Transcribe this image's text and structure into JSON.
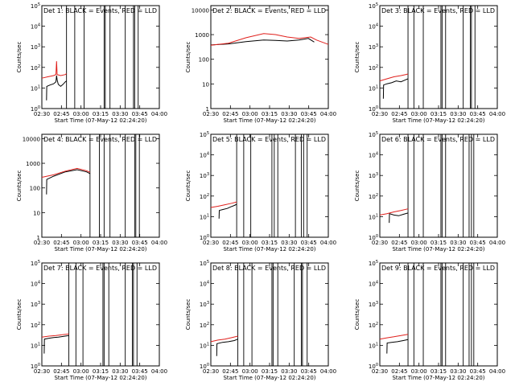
{
  "figure": {
    "xtick_labels": [
      "02:30",
      "02:45",
      "03:00",
      "03:15",
      "03:30",
      "03:45",
      "04:00"
    ],
    "xlabel": "Start Time (07-May-12 02:24:20)",
    "ylabel": "Counts/sec",
    "series_colors": {
      "events": "#000000",
      "lld": "#e0201c"
    }
  },
  "chart_data": [
    {
      "type": "line",
      "title": "Det 1: BLACK = Events, RED = LLD",
      "xlabel": "Start Time (07-May-12 02:24:20)",
      "ylabel": "Counts/sec",
      "scale": "log",
      "ylim": [
        1,
        100000
      ],
      "xlim": [
        0,
        100
      ],
      "yticks": [
        1,
        10,
        100,
        1000,
        10000,
        100000
      ],
      "ytick_labels": [
        "10^0",
        "10^1",
        "10^2",
        "10^3",
        "10^4",
        "10^5"
      ],
      "ytick_style": "sup",
      "gaps": [
        [
          21,
          28
        ],
        [
          36,
          53
        ],
        [
          54,
          58
        ],
        [
          71,
          78
        ],
        [
          79,
          82
        ]
      ],
      "series": [
        {
          "name": "Events",
          "color": "#000000",
          "points": [
            [
              4,
              2.5
            ],
            [
              4.2,
              12
            ],
            [
              7,
              14
            ],
            [
              10,
              16
            ],
            [
              12,
              20
            ],
            [
              12.5,
              40
            ],
            [
              13,
              25
            ],
            [
              14,
              15
            ],
            [
              16,
              12
            ],
            [
              18,
              15
            ],
            [
              20,
              20
            ],
            [
              21,
              22
            ]
          ]
        },
        {
          "name": "LLD",
          "color": "#e0201c",
          "points": [
            [
              0,
              30
            ],
            [
              5,
              35
            ],
            [
              10,
              40
            ],
            [
              12,
              45
            ],
            [
              12.5,
              200
            ],
            [
              13,
              45
            ],
            [
              16,
              40
            ],
            [
              20,
              45
            ],
            [
              21,
              50
            ]
          ]
        }
      ]
    },
    {
      "type": "line",
      "title": "Det 2: BLACK = Events, RED = LLD",
      "xlabel": "Start Time (07-May-12 02:24:20)",
      "ylabel": "Counts/sec",
      "scale": "log",
      "ylim": [
        1,
        15000
      ],
      "xlim": [
        0,
        100
      ],
      "yticks": [
        1,
        10,
        100,
        1000,
        10000
      ],
      "ytick_labels": [
        "1",
        "10",
        "100",
        "1000",
        "10000"
      ],
      "ytick_style": "plain",
      "gaps": [],
      "series": [
        {
          "name": "Events",
          "color": "#000000",
          "points": [
            [
              0,
              380
            ],
            [
              15,
              420
            ],
            [
              30,
              520
            ],
            [
              45,
              600
            ],
            [
              55,
              580
            ],
            [
              65,
              550
            ],
            [
              75,
              600
            ],
            [
              83,
              700
            ],
            [
              88,
              500
            ]
          ]
        },
        {
          "name": "LLD",
          "color": "#e0201c",
          "points": [
            [
              0,
              370
            ],
            [
              15,
              450
            ],
            [
              30,
              750
            ],
            [
              45,
              1100
            ],
            [
              55,
              1000
            ],
            [
              65,
              800
            ],
            [
              75,
              700
            ],
            [
              85,
              800
            ],
            [
              90,
              600
            ],
            [
              100,
              400
            ]
          ]
        }
      ]
    },
    {
      "type": "line",
      "title": "Det 3: BLACK = Events, RED = LLD",
      "xlabel": "Start Time (07-May-12 02:24:20)",
      "ylabel": "Counts/sec",
      "scale": "log",
      "ylim": [
        1,
        100000
      ],
      "xlim": [
        0,
        100
      ],
      "yticks": [
        1,
        10,
        100,
        1000,
        10000,
        100000
      ],
      "ytick_labels": [
        "10^0",
        "10^1",
        "10^2",
        "10^3",
        "10^4",
        "10^5"
      ],
      "ytick_style": "sup",
      "gaps": [
        [
          24,
          29
        ],
        [
          37,
          52
        ],
        [
          53,
          56
        ],
        [
          71,
          77
        ],
        [
          78,
          81
        ]
      ],
      "series": [
        {
          "name": "Events",
          "color": "#000000",
          "points": [
            [
              3,
              3
            ],
            [
              3.2,
              14
            ],
            [
              6,
              16
            ],
            [
              10,
              18
            ],
            [
              14,
              22
            ],
            [
              18,
              20
            ],
            [
              22,
              25
            ],
            [
              24,
              28
            ]
          ]
        },
        {
          "name": "LLD",
          "color": "#e0201c",
          "points": [
            [
              0,
              22
            ],
            [
              6,
              28
            ],
            [
              12,
              35
            ],
            [
              18,
              40
            ],
            [
              22,
              45
            ],
            [
              24,
              48
            ]
          ]
        }
      ]
    },
    {
      "type": "line",
      "title": "Det 4: BLACK = Events, RED = LLD",
      "xlabel": "Start Time (07-May-12 02:24:20)",
      "ylabel": "Counts/sec",
      "scale": "log",
      "ylim": [
        1,
        15000
      ],
      "xlim": [
        0,
        100
      ],
      "yticks": [
        1,
        10,
        100,
        1000,
        10000
      ],
      "ytick_labels": [
        "1",
        "10",
        "100",
        "1000",
        "10000"
      ],
      "ytick_style": "plain",
      "gaps": [
        [
          41,
          49
        ],
        [
          53,
          58
        ],
        [
          71,
          79
        ],
        [
          80,
          83
        ]
      ],
      "series": [
        {
          "name": "Events",
          "color": "#000000",
          "points": [
            [
              4,
              55
            ],
            [
              4.2,
              220
            ],
            [
              10,
              300
            ],
            [
              20,
              450
            ],
            [
              30,
              550
            ],
            [
              38,
              450
            ],
            [
              41,
              380
            ]
          ]
        },
        {
          "name": "LLD",
          "color": "#e0201c",
          "points": [
            [
              0,
              270
            ],
            [
              10,
              340
            ],
            [
              20,
              480
            ],
            [
              30,
              620
            ],
            [
              38,
              500
            ],
            [
              41,
              430
            ]
          ]
        }
      ]
    },
    {
      "type": "line",
      "title": "Det 5: BLACK = Events, RED = LLD",
      "xlabel": "Start Time (07-May-12 02:24:20)",
      "ylabel": "Counts/sec",
      "scale": "log",
      "ylim": [
        1,
        100000
      ],
      "xlim": [
        0,
        100
      ],
      "yticks": [
        1,
        10,
        100,
        1000,
        10000,
        100000
      ],
      "ytick_labels": [
        "10^0",
        "10^1",
        "10^2",
        "10^3",
        "10^4",
        "10^5"
      ],
      "ytick_style": "sup",
      "gaps": [
        [
          22,
          28
        ],
        [
          34,
          52
        ],
        [
          54,
          57
        ],
        [
          72,
          77
        ],
        [
          79,
          82
        ]
      ],
      "series": [
        {
          "name": "Events",
          "color": "#000000",
          "points": [
            [
              7,
              8
            ],
            [
              7.2,
              20
            ],
            [
              10,
              22
            ],
            [
              14,
              25
            ],
            [
              17,
              30
            ],
            [
              20,
              35
            ],
            [
              22,
              40
            ]
          ]
        },
        {
          "name": "LLD",
          "color": "#e0201c",
          "points": [
            [
              0,
              28
            ],
            [
              6,
              32
            ],
            [
              12,
              38
            ],
            [
              18,
              45
            ],
            [
              22,
              52
            ]
          ]
        }
      ]
    },
    {
      "type": "line",
      "title": "Det 6: BLACK = Events, RED = LLD",
      "xlabel": "Start Time (07-May-12 02:24:20)",
      "ylabel": "Counts/sec",
      "scale": "log",
      "ylim": [
        1,
        100000
      ],
      "xlim": [
        0,
        100
      ],
      "yticks": [
        1,
        10,
        100,
        1000,
        10000,
        100000
      ],
      "ytick_labels": [
        "10^0",
        "10^1",
        "10^2",
        "10^3",
        "10^4",
        "10^5"
      ],
      "ytick_style": "sup",
      "gaps": [
        [
          24,
          29
        ],
        [
          37,
          52
        ],
        [
          53,
          56
        ],
        [
          71,
          76
        ],
        [
          78,
          80
        ]
      ],
      "series": [
        {
          "name": "Events",
          "color": "#000000",
          "points": [
            [
              8,
              5
            ],
            [
              8.2,
              14
            ],
            [
              12,
              12
            ],
            [
              16,
              11
            ],
            [
              20,
              13
            ],
            [
              24,
              15
            ]
          ]
        },
        {
          "name": "LLD",
          "color": "#e0201c",
          "points": [
            [
              0,
              12
            ],
            [
              6,
              14
            ],
            [
              12,
              17
            ],
            [
              18,
              20
            ],
            [
              24,
              24
            ]
          ]
        }
      ]
    },
    {
      "type": "line",
      "title": "Det 7: BLACK = Events, RED = LLD",
      "xlabel": "Start Time (07-May-12 02:24:20)",
      "ylabel": "Counts/sec",
      "scale": "log",
      "ylim": [
        1,
        100000
      ],
      "xlim": [
        0,
        100
      ],
      "yticks": [
        1,
        10,
        100,
        1000,
        10000,
        100000
      ],
      "ytick_labels": [
        "10^0",
        "10^1",
        "10^2",
        "10^3",
        "10^4",
        "10^5"
      ],
      "ytick_style": "sup",
      "gaps": [
        [
          23,
          29
        ],
        [
          35,
          52
        ],
        [
          53,
          57
        ],
        [
          71,
          77
        ],
        [
          78,
          81
        ]
      ],
      "series": [
        {
          "name": "Events",
          "color": "#000000",
          "points": [
            [
              2,
              4
            ],
            [
              2.2,
              20
            ],
            [
              6,
              22
            ],
            [
              10,
              24
            ],
            [
              14,
              25
            ],
            [
              18,
              27
            ],
            [
              23,
              30
            ]
          ]
        },
        {
          "name": "LLD",
          "color": "#e0201c",
          "points": [
            [
              0,
              25
            ],
            [
              6,
              28
            ],
            [
              12,
              30
            ],
            [
              18,
              33
            ],
            [
              23,
              36
            ]
          ]
        }
      ]
    },
    {
      "type": "line",
      "title": "Det 8: BLACK = Events, RED = LLD",
      "xlabel": "Start Time (07-May-12 02:24:20)",
      "ylabel": "Counts/sec",
      "scale": "log",
      "ylim": [
        1,
        100000
      ],
      "xlim": [
        0,
        100
      ],
      "yticks": [
        1,
        10,
        100,
        1000,
        10000,
        100000
      ],
      "ytick_labels": [
        "10^0",
        "10^1",
        "10^2",
        "10^3",
        "10^4",
        "10^5"
      ],
      "ytick_style": "sup",
      "gaps": [
        [
          23,
          28
        ],
        [
          35,
          52
        ],
        [
          53,
          57
        ],
        [
          71,
          77
        ],
        [
          78,
          82
        ]
      ],
      "series": [
        {
          "name": "Events",
          "color": "#000000",
          "points": [
            [
              5,
              3
            ],
            [
              5.2,
              12
            ],
            [
              10,
              14
            ],
            [
              15,
              15
            ],
            [
              20,
              17
            ],
            [
              23,
              20
            ]
          ]
        },
        {
          "name": "LLD",
          "color": "#e0201c",
          "points": [
            [
              0,
              15
            ],
            [
              6,
              18
            ],
            [
              12,
              20
            ],
            [
              18,
              24
            ],
            [
              23,
              28
            ]
          ]
        }
      ]
    },
    {
      "type": "line",
      "title": "Det 9: BLACK = Events, RED = LLD",
      "xlabel": "Start Time (07-May-12 02:24:20)",
      "ylabel": "Counts/sec",
      "scale": "log",
      "ylim": [
        1,
        100000
      ],
      "xlim": [
        0,
        100
      ],
      "yticks": [
        1,
        10,
        100,
        1000,
        10000,
        100000
      ],
      "ytick_labels": [
        "10^0",
        "10^1",
        "10^2",
        "10^3",
        "10^4",
        "10^5"
      ],
      "ytick_style": "sup",
      "gaps": [
        [
          24,
          29
        ],
        [
          37,
          52
        ],
        [
          53,
          56
        ],
        [
          71,
          76
        ],
        [
          78,
          80
        ]
      ],
      "series": [
        {
          "name": "Events",
          "color": "#000000",
          "points": [
            [
              6,
              4
            ],
            [
              6.2,
              13
            ],
            [
              10,
              14
            ],
            [
              15,
              15
            ],
            [
              20,
              17
            ],
            [
              24,
              19
            ]
          ]
        },
        {
          "name": "LLD",
          "color": "#e0201c",
          "points": [
            [
              0,
              20
            ],
            [
              6,
              23
            ],
            [
              12,
              26
            ],
            [
              18,
              30
            ],
            [
              24,
              34
            ]
          ]
        }
      ]
    }
  ]
}
